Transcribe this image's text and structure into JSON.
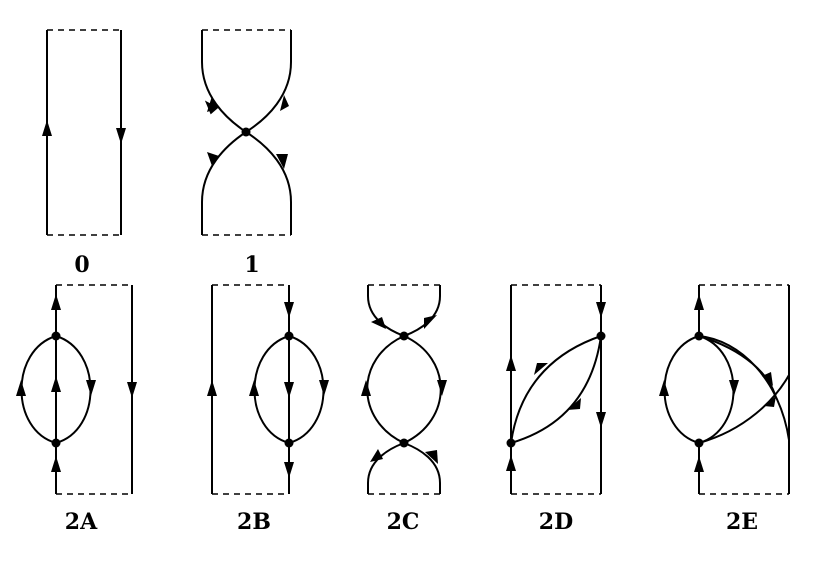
{
  "figure": {
    "diagrams": [
      {
        "id": "0",
        "label": "0"
      },
      {
        "id": "1",
        "label": "1"
      },
      {
        "id": "2A",
        "label": "2A"
      },
      {
        "id": "2B",
        "label": "2B"
      },
      {
        "id": "2C",
        "label": "2C"
      },
      {
        "id": "2D",
        "label": "2D"
      },
      {
        "id": "2E",
        "label": "2E"
      }
    ]
  }
}
